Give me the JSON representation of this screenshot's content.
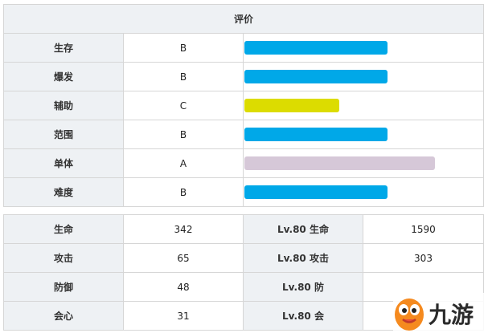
{
  "rating": {
    "title": "评价",
    "rows": [
      {
        "label": "生存",
        "grade": "B",
        "level": 0.6,
        "color": "#00a8e8"
      },
      {
        "label": "爆发",
        "grade": "B",
        "level": 0.6,
        "color": "#00a8e8"
      },
      {
        "label": "辅助",
        "grade": "C",
        "level": 0.4,
        "color": "#dcdc00"
      },
      {
        "label": "范围",
        "grade": "B",
        "level": 0.6,
        "color": "#00a8e8"
      },
      {
        "label": "单体",
        "grade": "A",
        "level": 0.8,
        "color": "#d6c8d8"
      },
      {
        "label": "难度",
        "grade": "B",
        "level": 0.6,
        "color": "#00a8e8"
      }
    ]
  },
  "stats": {
    "rows": [
      {
        "label": "生命",
        "value": "342",
        "lv_label": "Lv.80 生命",
        "lv_value": "1590"
      },
      {
        "label": "攻击",
        "value": "65",
        "lv_label": "Lv.80 攻击",
        "lv_value": "303"
      },
      {
        "label": "防御",
        "value": "48",
        "lv_label": "Lv.80 防",
        "lv_value": ""
      },
      {
        "label": "会心",
        "value": "31",
        "lv_label": "Lv.80 会",
        "lv_value": ""
      }
    ]
  },
  "watermark": {
    "text": "九游",
    "icon": "smiley-face-icon"
  }
}
